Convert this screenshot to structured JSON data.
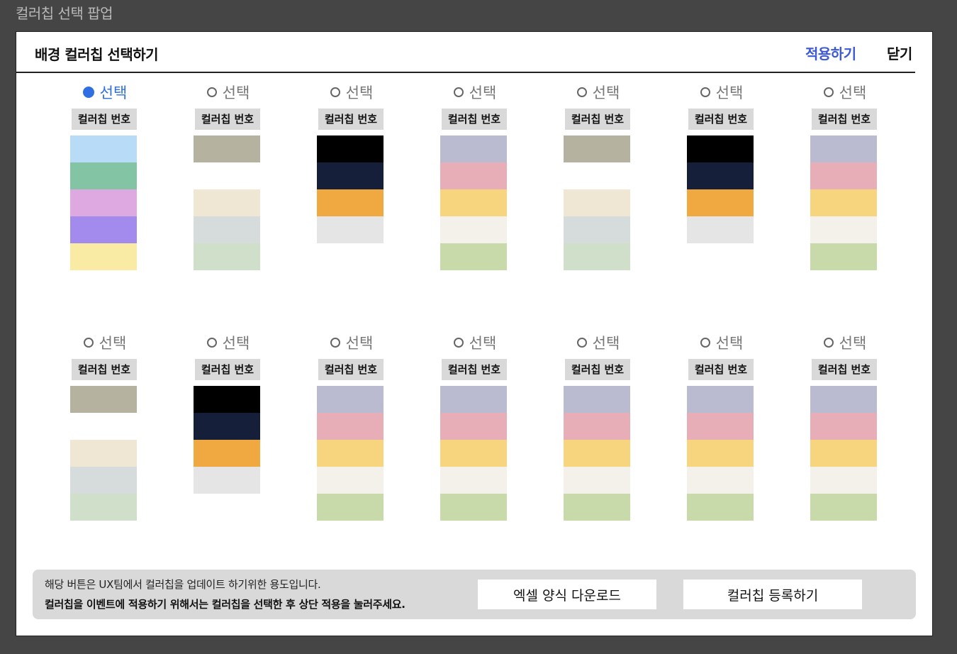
{
  "window_title": "컬러칩 선택 팝업",
  "header": {
    "title": "배경 컬러칩 선택하기",
    "apply": "적용하기",
    "close": "닫기"
  },
  "option_label": "선택",
  "chip_label": "컬러칩 번호",
  "colors": {
    "selected_radio": "#2f6fe3",
    "apply": "#3d59d6"
  },
  "chips": [
    {
      "selected": true,
      "swatches": [
        "#b8dcf8",
        "#82c4a3",
        "#dea8e0",
        "#a38bee",
        "#f9eba3"
      ]
    },
    {
      "selected": false,
      "swatches": [
        "#b5b3a0",
        "#ffffff",
        "#efe6d3",
        "#d6dbdb",
        "#cfdfc9"
      ]
    },
    {
      "selected": false,
      "swatches": [
        "#000000",
        "#161f3a",
        "#f0a840",
        "#e5e5e5"
      ]
    },
    {
      "selected": false,
      "swatches": [
        "#babad0",
        "#e8aeb8",
        "#f6d57e",
        "#f4f0ea",
        "#c8d9aa"
      ]
    },
    {
      "selected": false,
      "swatches": [
        "#b5b3a0",
        "#ffffff",
        "#efe6d3",
        "#d6dbdb",
        "#cfdfc9"
      ]
    },
    {
      "selected": false,
      "swatches": [
        "#000000",
        "#161f3a",
        "#f0a840",
        "#e5e5e5"
      ]
    },
    {
      "selected": false,
      "swatches": [
        "#babad0",
        "#e8aeb8",
        "#f6d57e",
        "#f4f0ea",
        "#c8d9aa"
      ]
    },
    {
      "selected": false,
      "swatches": [
        "#b5b3a0",
        "#ffffff",
        "#efe6d3",
        "#d6dbdb",
        "#cfdfc9"
      ]
    },
    {
      "selected": false,
      "swatches": [
        "#000000",
        "#161f3a",
        "#f0a840",
        "#e5e5e5"
      ]
    },
    {
      "selected": false,
      "swatches": [
        "#babad0",
        "#e8aeb8",
        "#f6d57e",
        "#f4f0ea",
        "#c8d9aa"
      ]
    },
    {
      "selected": false,
      "swatches": [
        "#babad0",
        "#e8aeb8",
        "#f6d57e",
        "#f4f0ea",
        "#c8d9aa"
      ]
    },
    {
      "selected": false,
      "swatches": [
        "#babad0",
        "#e8aeb8",
        "#f6d57e",
        "#f4f0ea",
        "#c8d9aa"
      ]
    },
    {
      "selected": false,
      "swatches": [
        "#babad0",
        "#e8aeb8",
        "#f6d57e",
        "#f4f0ea",
        "#c8d9aa"
      ]
    },
    {
      "selected": false,
      "swatches": [
        "#babad0",
        "#e8aeb8",
        "#f6d57e",
        "#f4f0ea",
        "#c8d9aa"
      ]
    }
  ],
  "footer": {
    "note": "해당 버튼은 UX팀에서 컬러칩을 업데이트 하기위한 용도입니다.",
    "instruction": "컬러칩을 이벤트에 적용하기 위해서는 컬러칩을 선택한 후 상단 적용을 눌러주세요.",
    "excel_button": "엑셀 양식 다운로드",
    "register_button": "컬러칩 등록하기"
  }
}
